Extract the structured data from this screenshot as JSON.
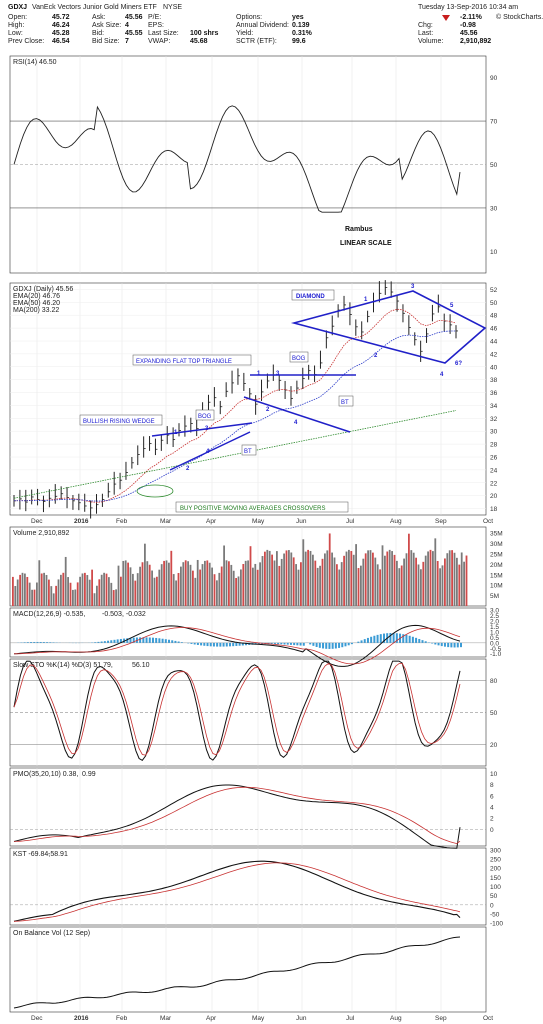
{
  "header": {
    "ticker": "GDXJ",
    "name": "VanEck Vectors Junior Gold Miners ETF",
    "exchange": "NYSE",
    "date_time": "Tuesday 13-Sep-2016 10:34 am",
    "brand": "© StockCharts.com",
    "left": [
      {
        "label": "Open:",
        "value": "45.72"
      },
      {
        "label": "High:",
        "value": "46.24"
      },
      {
        "label": "Low:",
        "value": "45.28"
      },
      {
        "label": "Prev Close:",
        "value": "46.54"
      }
    ],
    "mid1": [
      {
        "label": "Ask:",
        "value": "45.56"
      },
      {
        "label": "Ask Size:",
        "value": "4"
      },
      {
        "label": "Bid:",
        "value": "45.55"
      },
      {
        "label": "Bid Size:",
        "value": "7"
      }
    ],
    "mid2": [
      {
        "label": "P/E:",
        "value": ""
      },
      {
        "label": "EPS:",
        "value": ""
      },
      {
        "label": "Last Size:",
        "value": "100 shrs"
      },
      {
        "label": "VWAP:",
        "value": "45.68"
      }
    ],
    "mid3": [
      {
        "label": "Options:",
        "value": "yes"
      },
      {
        "label": "Annual Dividend:",
        "value": "0.139"
      },
      {
        "label": "Yield:",
        "value": "0.31%"
      },
      {
        "label": "SCTR (ETF):",
        "value": "99.6"
      }
    ],
    "right": [
      {
        "label": "",
        "value": "-2.11%"
      },
      {
        "label": "Chg:",
        "value": "-0.98"
      },
      {
        "label": "Last:",
        "value": "45.56"
      },
      {
        "label": "Volume:",
        "value": "2,910,892"
      }
    ]
  },
  "panels": {
    "rsi": {
      "label": "RSI(14) 46.50",
      "note1": "Rambus",
      "note2": "LINEAR SCALE"
    },
    "price": {
      "label": "GDXJ (Daily) 45.56",
      "ema20": "EMA(20) 46.76",
      "ema50": "EMA(50) 46.20",
      "ma200": "MA(200) 33.22"
    },
    "volume": {
      "label": "Volume 2,910,892"
    },
    "macd": {
      "label": "MACD(12,26,9) -0.535, ",
      "v2": "-0.503",
      "v3": ", -0.032"
    },
    "sto": {
      "label": "Slow STO %K(14) %D(3) 51.79, ",
      "v2": "56.10"
    },
    "pmo": {
      "label": "PMO(35,20,10) 0.38, ",
      "v2": "0.99"
    },
    "kst": {
      "label": "KST -69.84, ",
      "v2": "-58.91"
    },
    "obv": {
      "label": "On Balance Vol (12 Sep)"
    }
  },
  "annotations": {
    "diamond": "DIAMOND",
    "eft": "EXPANDING FLAT TOP TRIANGLE",
    "wedge": "BULLISH RISING WEDGE",
    "bog1": "BOG",
    "bog2": "BOG",
    "bt1": "BT",
    "bt2": "BT",
    "crossover": "BUY POSITIVE MOVING AVERAGES CROSSOVERS",
    "n6": "6?"
  },
  "chart_data": {
    "type": "line",
    "title": "GDXJ VanEck Vectors Junior Gold Miners ETF NYSE",
    "x": [
      "Dec",
      "2016",
      "Feb",
      "Mar",
      "Apr",
      "May",
      "Jun",
      "Jul",
      "Aug",
      "Sep",
      "Oct"
    ],
    "price_axis": {
      "ticks": [
        18,
        20,
        22,
        24,
        26,
        28,
        30,
        32,
        34,
        36,
        38,
        40,
        42,
        44,
        46,
        48,
        50,
        52
      ],
      "ylim": [
        17,
        53
      ]
    },
    "price_close": [
      19.2,
      19.5,
      19.0,
      19.8,
      19.4,
      19.1,
      19.6,
      19.9,
      20.3,
      19.7,
      19.2,
      18.9,
      18.4,
      18.1,
      18.6,
      19.4,
      20.6,
      21.8,
      22.4,
      23.6,
      25.1,
      26.4,
      27.3,
      28.1,
      27.2,
      28.6,
      29.4,
      28.7,
      30.1,
      30.8,
      31.2,
      30.4,
      32.6,
      34.5,
      35.2,
      33.8,
      36.2,
      37.5,
      38.6,
      37.4,
      35.8,
      34.2,
      36.1,
      37.8,
      38.7,
      37.9,
      36.4,
      35.1,
      36.7,
      38.2,
      39.4,
      38.8,
      40.6,
      44.5,
      46.3,
      48.8,
      49.6,
      48.1,
      46.2,
      45.4,
      47.8,
      50.1,
      51.4,
      52.3,
      51.6,
      50.2,
      48.3,
      46.1,
      44.2,
      42.4,
      45.1,
      48.2,
      49.3,
      47.1,
      46.5,
      45.56
    ],
    "series": [
      {
        "name": "EMA(20)",
        "value": 46.76
      },
      {
        "name": "EMA(50)",
        "value": 46.2
      },
      {
        "name": "MA(200)",
        "value": 33.22
      }
    ],
    "rsi": {
      "ticks": [
        10,
        30,
        50,
        70,
        90
      ],
      "last": 46.5
    },
    "volume": {
      "ticks": [
        "5M",
        "10M",
        "15M",
        "20M",
        "25M",
        "30M",
        "35M"
      ]
    },
    "macd": {
      "ticks": [
        "3.0",
        "2.5",
        "2.0",
        "1.5",
        "1.0",
        "0.5",
        "0.0",
        "-0.5",
        "-1.0"
      ]
    },
    "sto": {
      "ticks": [
        20,
        50,
        80
      ]
    },
    "pmo": {
      "ticks": [
        0,
        2,
        4,
        6,
        8,
        10
      ]
    },
    "kst": {
      "ticks": [
        -100,
        -50,
        0,
        50,
        100,
        150,
        200,
        250,
        300
      ]
    },
    "colors": {
      "price_up": "#222222",
      "ema20": "#c83232",
      "ema50": "#2a3ac8",
      "ma200": "#2e8b2e",
      "vol_up": "#7a7a7a",
      "vol_dn": "#d04a4a",
      "annotation": "#1a1ad0",
      "hist": "#3a9bd5"
    }
  }
}
